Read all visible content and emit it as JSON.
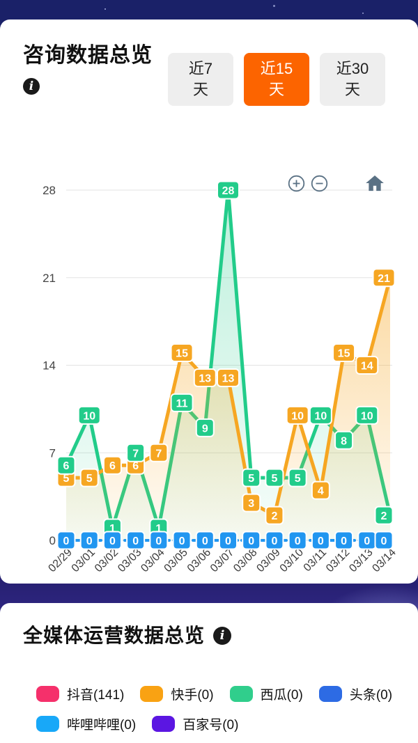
{
  "page": {
    "bg_color": "#1A2168",
    "band_color": "#2B2277",
    "accent_color": "#FC6400"
  },
  "consult_card": {
    "title": "咨询数据总览",
    "info_icon": "i",
    "tabs": [
      {
        "label": "近7天",
        "active": false
      },
      {
        "label": "近15天",
        "active": true
      },
      {
        "label": "近30天",
        "active": false
      }
    ],
    "controls": {
      "zoom_in": "plus-circle",
      "zoom_out": "minus-circle",
      "home": "home",
      "icon_color": "#5A7184"
    }
  },
  "chart_data": {
    "type": "line",
    "title": "咨询数据总览",
    "xlabel": "",
    "ylabel": "",
    "x": [
      "02/29",
      "03/01",
      "03/02",
      "03/03",
      "03/04",
      "03/05",
      "03/06",
      "03/07",
      "03/08",
      "03/09",
      "03/10",
      "03/11",
      "03/12",
      "03/13",
      "03/14"
    ],
    "ylim": [
      0,
      28
    ],
    "yticks": [
      0,
      7,
      14,
      21,
      28
    ],
    "grid": true,
    "legend_position": "none",
    "series": [
      {
        "name": "green-series",
        "color": "#22CC8A",
        "area": true,
        "dashed": false,
        "values": [
          6,
          10,
          1,
          7,
          1,
          11,
          9,
          28,
          5,
          5,
          5,
          10,
          8,
          10,
          2
        ]
      },
      {
        "name": "orange-series",
        "color": "#F6A622",
        "area": true,
        "dashed": false,
        "values": [
          5,
          5,
          6,
          6,
          7,
          15,
          13,
          13,
          3,
          2,
          10,
          4,
          15,
          14,
          21
        ]
      },
      {
        "name": "blue-series",
        "color": "#2196F0",
        "area": false,
        "dashed": true,
        "values": [
          0,
          0,
          0,
          0,
          0,
          0,
          0,
          0,
          0,
          0,
          0,
          0,
          0,
          0,
          0
        ]
      }
    ],
    "grid_color": "#E3E3E3",
    "axis_text_color": "#3A3A3A"
  },
  "media_card": {
    "title": "全媒体运营数据总览",
    "info_icon": "i",
    "legend": [
      {
        "label": "抖音(141)",
        "color": "#F5306B"
      },
      {
        "label": "快手(0)",
        "color": "#F9A213"
      },
      {
        "label": "西瓜(0)",
        "color": "#30CE8C"
      },
      {
        "label": "头条(0)",
        "color": "#2D6BE4"
      },
      {
        "label": "哔哩哔哩(0)",
        "color": "#18A8F8"
      },
      {
        "label": "百家号(0)",
        "color": "#5B16E2"
      }
    ]
  }
}
